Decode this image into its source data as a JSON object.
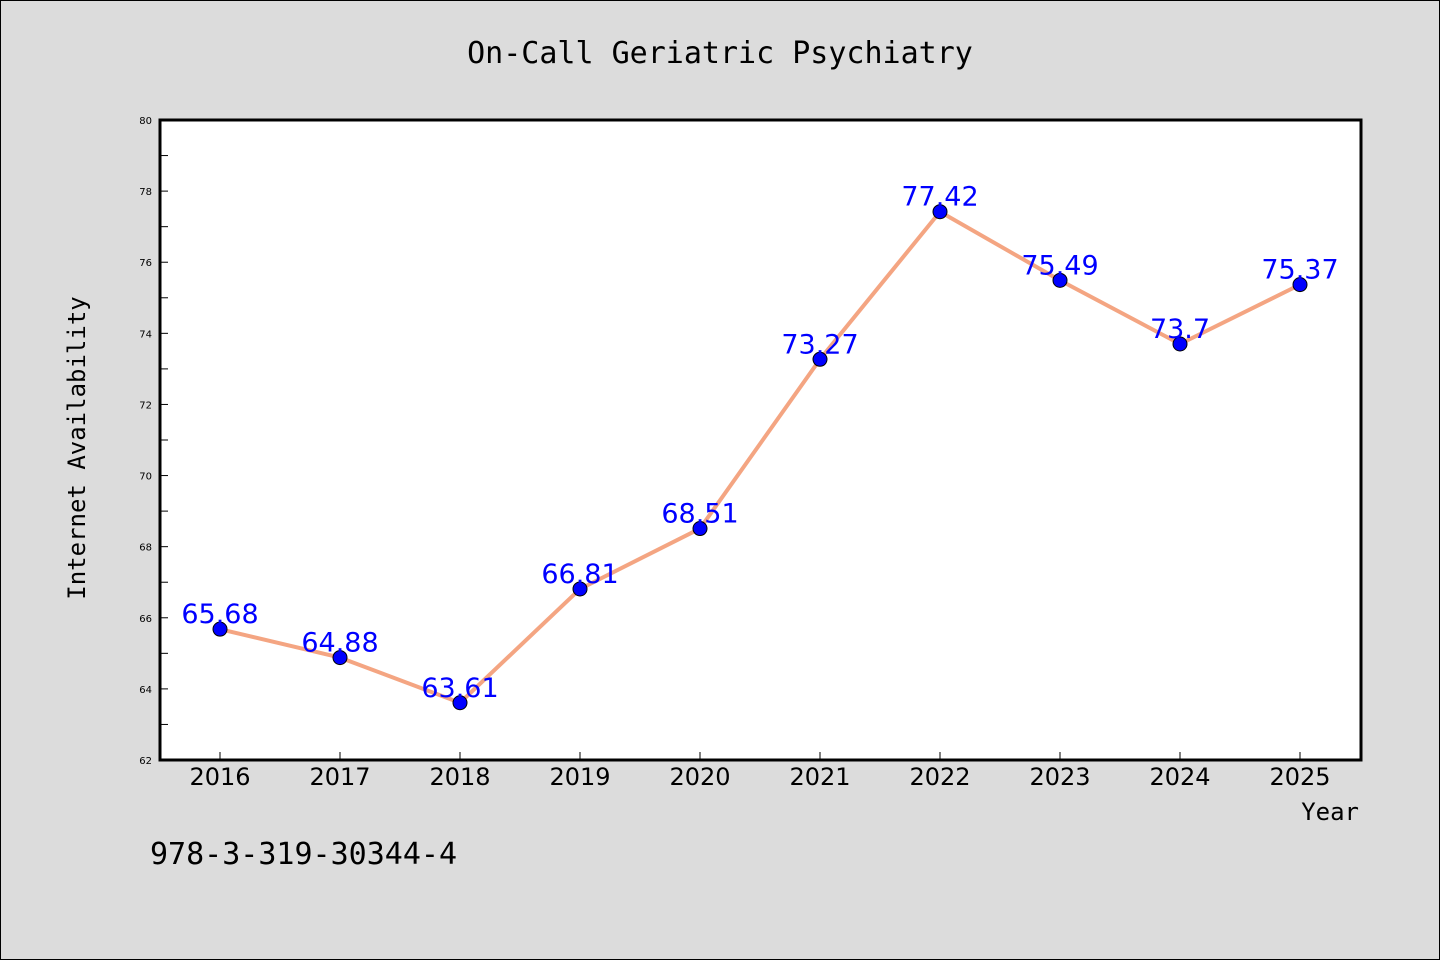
{
  "colors": {
    "background": "#dcdcdc",
    "plot_background": "#ffffff",
    "line": "#f4a582",
    "marker": "#0000ff",
    "data_label": "#0000ff",
    "axis": "#000000"
  },
  "footer_code": "978-3-319-30344-4",
  "chart_data": {
    "type": "line",
    "title": "On-Call Geriatric Psychiatry",
    "xlabel": "Year",
    "ylabel": "Internet Availability",
    "categories": [
      "2016",
      "2017",
      "2018",
      "2019",
      "2020",
      "2021",
      "2022",
      "2023",
      "2024",
      "2025"
    ],
    "series": [
      {
        "values": [
          65.68,
          64.88,
          63.61,
          66.81,
          68.51,
          73.27,
          77.42,
          75.49,
          73.7,
          75.37
        ],
        "labels": [
          "65.68",
          "64.88",
          "63.61",
          "66.81",
          "68.51",
          "73.27",
          "77.42",
          "75.49",
          "73.7",
          "75.37"
        ]
      }
    ],
    "ylim": [
      62,
      80
    ],
    "yticks": [
      "62",
      "64",
      "66",
      "68",
      "70",
      "72",
      "74",
      "76",
      "78",
      "80"
    ],
    "grid": false,
    "legend": "none"
  }
}
